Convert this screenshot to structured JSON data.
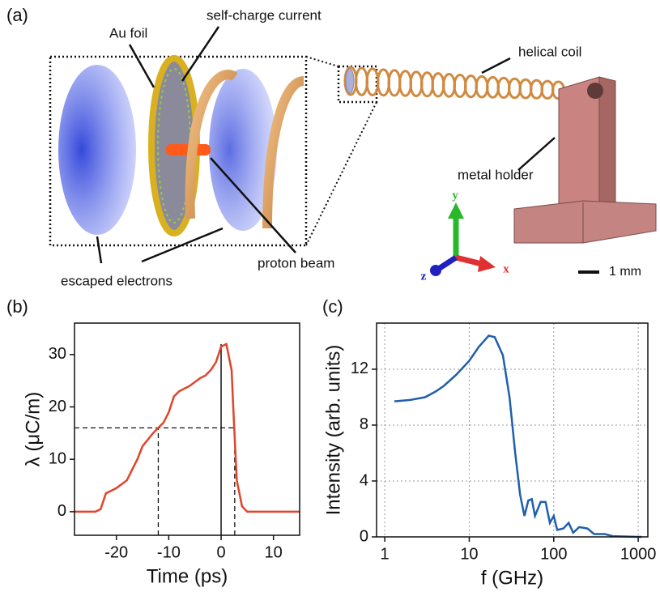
{
  "diagram": {
    "panel": "(a)",
    "labels": {
      "au_foil": "Au foil",
      "self_charge": "self-charge current",
      "helical_coil": "helical coil",
      "metal_holder": "metal holder",
      "escaped": "escaped electrons",
      "proton_beam": "proton beam",
      "scale": "1 mm",
      "axis_y": "y",
      "axis_x": "x",
      "axis_z": "z"
    }
  },
  "chart_data": [
    {
      "type": "line",
      "panel": "(b)",
      "xlabel": "Time (ps)",
      "ylabel": "λ (μC/m)",
      "color": "#e0442a",
      "x": [
        -28,
        -24,
        -23,
        -22,
        -21,
        -20,
        -18,
        -17,
        -16,
        -15,
        -13,
        -12,
        -11,
        -10,
        -9,
        -8,
        -6,
        -4,
        -3,
        -2,
        -1,
        0,
        1,
        2,
        2.5,
        3,
        4,
        5,
        15
      ],
      "values": [
        0,
        0,
        0.5,
        3.5,
        4,
        4.5,
        6,
        8,
        10,
        12.5,
        15,
        16,
        17,
        19,
        22,
        23,
        24,
        25.5,
        26,
        27,
        28.5,
        31.5,
        32,
        27,
        16,
        6,
        1,
        0,
        0
      ],
      "xlim": [
        -28,
        15
      ],
      "xticks": [
        -20,
        -10,
        0,
        10
      ],
      "ylim": [
        -4.5,
        36
      ],
      "yticks": [
        0,
        10,
        20,
        30
      ],
      "grid": false,
      "dashed_level": 16,
      "dashed_x": [
        -12,
        2.6
      ],
      "solid_x": 0
    },
    {
      "type": "line",
      "panel": "(c)",
      "xlabel": "f (GHz)",
      "ylabel": "Intensity (arb. units)",
      "color": "#1f5fad",
      "log_x": true,
      "x": [
        1.3,
        2,
        3,
        4,
        5,
        7,
        10,
        13,
        17,
        20,
        25,
        30,
        35,
        40,
        45,
        50,
        55,
        60,
        70,
        80,
        90,
        100,
        110,
        130,
        150,
        170,
        200,
        250,
        300,
        400,
        500,
        1000,
        1100
      ],
      "values": [
        9.7,
        9.8,
        10.0,
        10.4,
        10.8,
        11.6,
        12.6,
        13.6,
        14.4,
        14.3,
        13.0,
        10,
        6,
        3,
        1.5,
        2.6,
        2.7,
        1.5,
        2.5,
        2.5,
        1.0,
        1.5,
        0.5,
        0.6,
        1.0,
        0.3,
        0.7,
        0.6,
        0.2,
        0.2,
        0.05,
        0,
        0
      ],
      "xlim": [
        0.8,
        1300
      ],
      "xticks": [
        1,
        10,
        100,
        1000
      ],
      "ylim": [
        0,
        15.3
      ],
      "yticks": [
        0,
        4,
        8,
        12
      ],
      "grid": true
    }
  ]
}
